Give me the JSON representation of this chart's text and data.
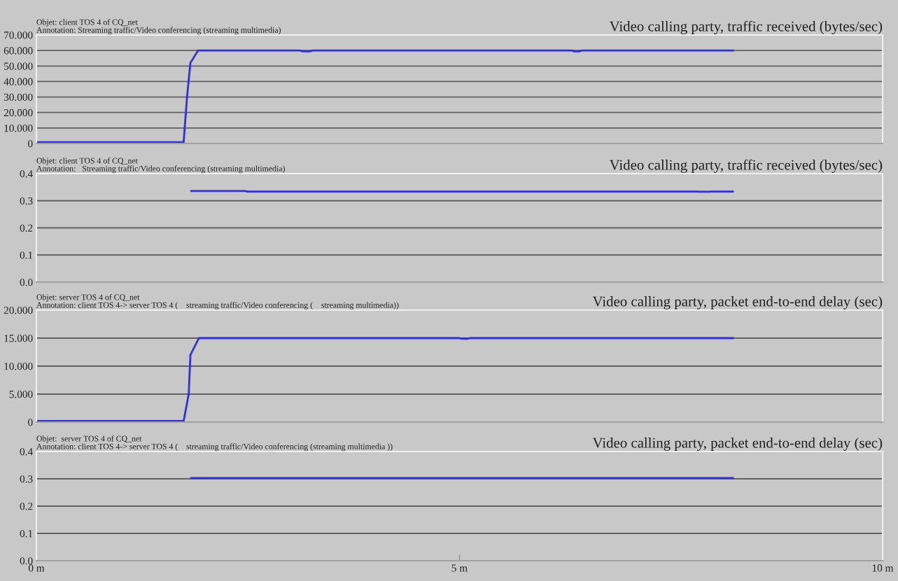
{
  "chart_data": [
    {
      "type": "line",
      "title": "Video calling party, traffic received (bytes/sec)",
      "subtitle": "Objet: client TOS 4 of CQ_net",
      "annotations": [
        "Annotation: Streaming traffic/Video conferencing (streaming multimedia)"
      ],
      "xlim": [
        0,
        10
      ],
      "ylim": [
        0,
        70
      ],
      "yticks": [
        0,
        {
          "value": 10,
          "label": "10.000"
        },
        {
          "value": 20,
          "label": "20.000"
        },
        {
          "value": 30,
          "label": "30.000"
        },
        {
          "value": 40,
          "label": "40.000"
        },
        {
          "value": 50,
          "label": "50.000"
        },
        {
          "value": 60,
          "label": "60.000"
        },
        {
          "value": 70,
          "label": "70.000"
        }
      ],
      "grid": "y",
      "tick_labels": "y",
      "series": [
        {
          "color": "#2f2fe0",
          "x": [
            0,
            1.74,
            1.78,
            1.82,
            1.91,
            3.12,
            3.14,
            3.24,
            3.26,
            6.33,
            6.35,
            6.42,
            6.44,
            8.23
          ],
          "values": [
            0.8,
            0.8,
            30,
            52,
            60,
            60,
            59.5,
            59.5,
            60,
            60,
            59.5,
            59.5,
            60,
            60
          ]
        }
      ]
    },
    {
      "type": "line",
      "title": "Video calling party, traffic received (bytes/sec)",
      "subtitle": "Objet: client TOS 4 of CQ_net",
      "annotations": [
        "Annotation:   Streaming traffic/Video conferencing (streaming multimedia)"
      ],
      "xlim": [
        0,
        10
      ],
      "ylim": [
        0,
        0.4
      ],
      "yticks": [
        {
          "value": 0,
          "label": "0.0"
        },
        0.1,
        0.2,
        0.3,
        0.4
      ],
      "grid": "y",
      "tick_labels": "y",
      "series": [
        {
          "color": "#2f2fe0",
          "x": [
            1.83,
            2.47,
            2.49,
            7.8,
            7.83,
            7.95,
            7.98,
            8.23
          ],
          "values": [
            0.336,
            0.336,
            0.334,
            0.334,
            0.333,
            0.333,
            0.334,
            0.334
          ]
        }
      ]
    },
    {
      "type": "line",
      "title": "Video calling party, packet end-to-end delay (sec)",
      "subtitle": "Objet: server TOS 4 of CQ_net",
      "annotations": [
        "Annotation: client TOS 4-> server TOS 4 (    streaming traffic/Video conferencing (    streaming multimedia))"
      ],
      "xlim": [
        0,
        10
      ],
      "ylim": [
        0,
        20
      ],
      "yticks": [
        0,
        {
          "value": 5,
          "label": "5.000"
        },
        {
          "value": 10,
          "label": "10.000"
        },
        {
          "value": 15,
          "label": "15.000"
        },
        {
          "value": 20,
          "label": "20.000"
        }
      ],
      "grid": "y",
      "tick_labels": "y",
      "series": [
        {
          "color": "#2f2fe0",
          "x": [
            0,
            1.74,
            1.8,
            1.82,
            1.92,
            5.0,
            5.02,
            5.1,
            5.12,
            8.23
          ],
          "values": [
            0.2,
            0.2,
            5,
            12,
            15,
            15,
            14.9,
            14.9,
            15,
            15
          ]
        }
      ]
    },
    {
      "type": "line",
      "title": "Video calling party, packet end-to-end delay (sec)",
      "subtitle": "Objet:  server TOS 4 of CQ_net",
      "annotations": [
        "Annotation: client TOS 4-> server TOS 4 (    streaming traffic/Video conferencing (streaming multimedia ))"
      ],
      "xlim": [
        0,
        10
      ],
      "xticks": [
        {
          "value": 0,
          "label": "0 m"
        },
        {
          "value": 5,
          "label": "5 m"
        },
        {
          "value": 10,
          "label": "10 m"
        }
      ],
      "ylim": [
        0,
        0.4
      ],
      "yticks": [
        {
          "value": 0,
          "label": "0.0"
        },
        0.1,
        0.2,
        0.3,
        0.4
      ],
      "grid": "y",
      "series": [
        {
          "color": "#2f2fe0",
          "x": [
            1.83,
            8.23
          ],
          "values": [
            0.303,
            0.303
          ]
        }
      ]
    }
  ]
}
